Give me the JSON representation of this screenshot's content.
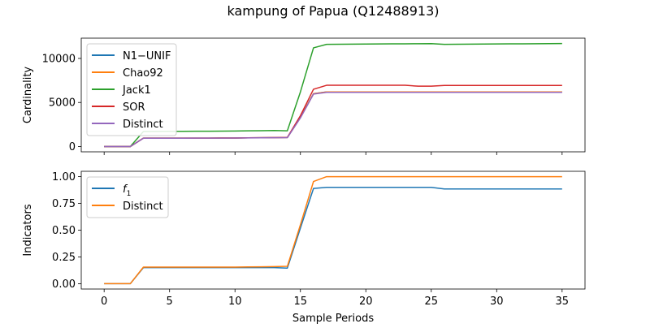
{
  "figure": {
    "title": "kampung of Papua (Q12488913)"
  },
  "colors": {
    "blue": "#1f77b4",
    "orange": "#ff7f0e",
    "green": "#2ca02c",
    "red": "#d62728",
    "purple": "#9467bd"
  },
  "chart_data": [
    {
      "type": "line",
      "title": "",
      "xlabel": "",
      "ylabel": "Cardinality",
      "xlim": [
        -1.75,
        36.75
      ],
      "ylim": [
        -600,
        12300
      ],
      "xticks": [
        0,
        5,
        10,
        15,
        20,
        25,
        30,
        35
      ],
      "xtick_labels_visible": false,
      "yticks": [
        0,
        5000,
        10000
      ],
      "ytick_labels": [
        "0",
        "5000",
        "10000"
      ],
      "legend": "upper left",
      "x": [
        0,
        1,
        2,
        3,
        4,
        5,
        6,
        7,
        8,
        9,
        10,
        11,
        12,
        13,
        14,
        15,
        16,
        17,
        18,
        19,
        20,
        21,
        22,
        23,
        24,
        25,
        26,
        27,
        28,
        29,
        30,
        31,
        32,
        33,
        34,
        35
      ],
      "series": [
        {
          "name": "N1−UNIF",
          "color": "#1f77b4",
          "values": [
            0,
            0,
            0,
            950,
            950,
            950,
            950,
            960,
            960,
            970,
            970,
            990,
            1000,
            1010,
            1020,
            3300,
            6000,
            6200,
            6200,
            6200,
            6200,
            6200,
            6200,
            6200,
            6200,
            6200,
            6200,
            6200,
            6200,
            6200,
            6200,
            6200,
            6200,
            6200,
            6200,
            6200
          ]
        },
        {
          "name": "Chao92",
          "color": "#ff7f0e",
          "values": [
            0,
            0,
            0,
            950,
            950,
            950,
            950,
            960,
            960,
            970,
            970,
            990,
            1000,
            1010,
            1020,
            3300,
            6000,
            6200,
            6200,
            6200,
            6200,
            6200,
            6200,
            6200,
            6200,
            6200,
            6200,
            6200,
            6200,
            6200,
            6200,
            6200,
            6200,
            6200,
            6200,
            6200
          ]
        },
        {
          "name": "Jack1",
          "color": "#2ca02c",
          "values": [
            0,
            0,
            0,
            1700,
            1720,
            1730,
            1730,
            1740,
            1740,
            1750,
            1760,
            1780,
            1800,
            1820,
            1780,
            6200,
            11200,
            11600,
            11610,
            11620,
            11630,
            11640,
            11650,
            11660,
            11670,
            11680,
            11600,
            11610,
            11620,
            11630,
            11640,
            11650,
            11660,
            11670,
            11680,
            11690
          ]
        },
        {
          "name": "SOR",
          "color": "#d62728",
          "values": [
            0,
            0,
            0,
            950,
            950,
            950,
            950,
            960,
            960,
            970,
            970,
            990,
            1000,
            1010,
            1030,
            3500,
            6500,
            6950,
            6950,
            6950,
            6950,
            6950,
            6950,
            6950,
            6850,
            6850,
            6930,
            6930,
            6930,
            6930,
            6930,
            6930,
            6930,
            6930,
            6930,
            6930
          ]
        },
        {
          "name": "Distinct",
          "color": "#9467bd",
          "values": [
            0,
            0,
            0,
            940,
            940,
            945,
            945,
            950,
            955,
            960,
            965,
            980,
            990,
            1000,
            1010,
            3250,
            5950,
            6150,
            6150,
            6150,
            6150,
            6150,
            6150,
            6150,
            6150,
            6150,
            6150,
            6150,
            6150,
            6150,
            6150,
            6150,
            6150,
            6150,
            6150,
            6150
          ]
        }
      ]
    },
    {
      "type": "line",
      "title": "",
      "xlabel": "Sample Periods",
      "ylabel": "Indicators",
      "xlim": [
        -1.75,
        36.75
      ],
      "ylim": [
        -0.05,
        1.05
      ],
      "xticks": [
        0,
        5,
        10,
        15,
        20,
        25,
        30,
        35
      ],
      "xtick_labels": [
        "0",
        "5",
        "10",
        "15",
        "20",
        "25",
        "30",
        "35"
      ],
      "yticks": [
        0,
        0.25,
        0.5,
        0.75,
        1.0
      ],
      "ytick_labels": [
        "0.00",
        "0.25",
        "0.50",
        "0.75",
        "1.00"
      ],
      "legend": "upper left",
      "x": [
        0,
        1,
        2,
        3,
        4,
        5,
        6,
        7,
        8,
        9,
        10,
        11,
        12,
        13,
        14,
        15,
        16,
        17,
        18,
        19,
        20,
        21,
        22,
        23,
        24,
        25,
        26,
        27,
        28,
        29,
        30,
        31,
        32,
        33,
        34,
        35
      ],
      "series": [
        {
          "name": "f1",
          "label_main": "f",
          "label_sub": "1",
          "color": "#1f77b4",
          "values": [
            0,
            0,
            0,
            0.15,
            0.15,
            0.15,
            0.15,
            0.15,
            0.15,
            0.15,
            0.15,
            0.15,
            0.15,
            0.15,
            0.145,
            0.52,
            0.89,
            0.9,
            0.9,
            0.9,
            0.9,
            0.9,
            0.9,
            0.9,
            0.9,
            0.9,
            0.885,
            0.885,
            0.885,
            0.885,
            0.885,
            0.885,
            0.885,
            0.885,
            0.885,
            0.885
          ]
        },
        {
          "name": "Distinct",
          "color": "#ff7f0e",
          "values": [
            0,
            0,
            0,
            0.155,
            0.155,
            0.155,
            0.155,
            0.155,
            0.155,
            0.155,
            0.155,
            0.157,
            0.158,
            0.16,
            0.162,
            0.55,
            0.955,
            1.0,
            1.0,
            1.0,
            1.0,
            1.0,
            1.0,
            1.0,
            1.0,
            1.0,
            1.0,
            1.0,
            1.0,
            1.0,
            1.0,
            1.0,
            1.0,
            1.0,
            1.0,
            1.0
          ]
        }
      ]
    }
  ]
}
